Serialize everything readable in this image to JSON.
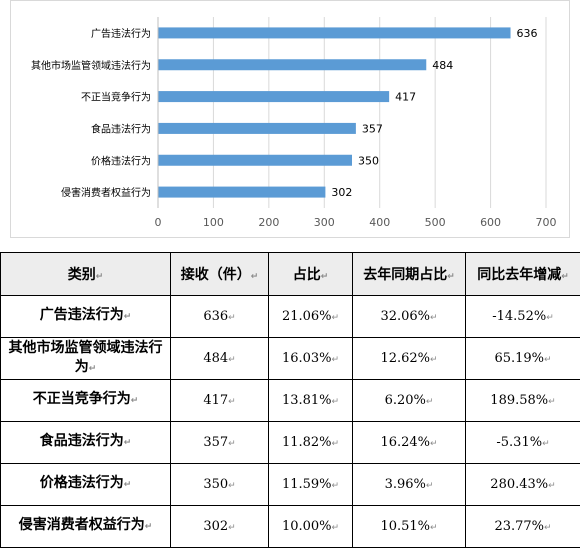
{
  "chart_data": {
    "type": "bar",
    "orientation": "horizontal",
    "categories": [
      "广告违法行为",
      "其他市场监管领域违法行为",
      "不正当竞争行为",
      "食品违法行为",
      "价格违法行为",
      "侵害消费者权益行为"
    ],
    "values": [
      636,
      484,
      417,
      357,
      350,
      302
    ],
    "xlim": [
      0,
      700
    ],
    "xticks": [
      0,
      100,
      200,
      300,
      400,
      500,
      600,
      700
    ],
    "bar_color": "#5b9bd5",
    "grid": true,
    "legend": "none"
  },
  "table": {
    "headers": [
      "类别",
      "接收（件）",
      "占比",
      "去年同期占比",
      "同比去年增减"
    ],
    "rows": [
      [
        "广告违法行为",
        "636",
        "21.06%",
        "32.06%",
        "-14.52%"
      ],
      [
        "其他市场监管领域违法行为",
        "484",
        "16.03%",
        "12.62%",
        "65.19%"
      ],
      [
        "不正当竞争行为",
        "417",
        "13.81%",
        "6.20%",
        "189.58%"
      ],
      [
        "食品违法行为",
        "357",
        "11.82%",
        "16.24%",
        "-5.31%"
      ],
      [
        "价格违法行为",
        "350",
        "11.59%",
        "3.96%",
        "280.43%"
      ],
      [
        "侵害消费者权益行为",
        "302",
        "10.00%",
        "10.51%",
        "23.77%"
      ]
    ],
    "cell_mark": "↵"
  }
}
